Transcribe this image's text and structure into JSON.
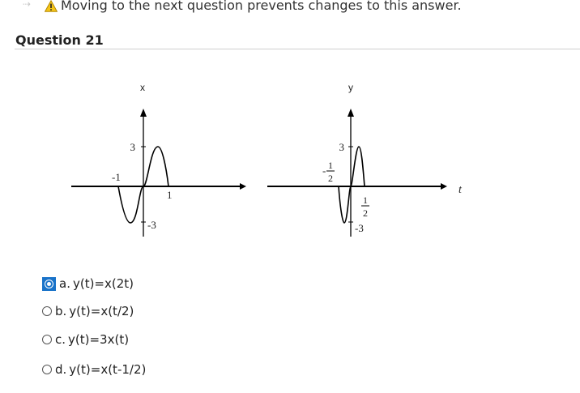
{
  "warning": {
    "nav_icon": "next-arrow-icon",
    "icon": "warning-icon",
    "text": "Moving to the next question prevents changes to this answer."
  },
  "question": {
    "title": "Question 21",
    "figure": {
      "left_plot": {
        "axis_label": "x",
        "tick_labels": {
          "y_pos": "3",
          "y_neg": "-3",
          "x_neg": "-1",
          "x_pos": "1"
        }
      },
      "right_plot": {
        "axis_label": "y",
        "horizontal_axis_label": "t",
        "tick_labels": {
          "y_pos": "3",
          "y_neg": "-3",
          "x_neg_num": "1",
          "x_neg_den": "2",
          "x_neg_sign": "-",
          "x_pos_num": "1",
          "x_pos_den": "2"
        }
      }
    },
    "options": [
      {
        "letter": "a.",
        "text": "y(t)=x(2t)",
        "selected": true
      },
      {
        "letter": "b.",
        "text": "y(t)=x(t/2)",
        "selected": false
      },
      {
        "letter": "c.",
        "text": "y(t)=3x(t)",
        "selected": false
      },
      {
        "letter": "d.",
        "text": "y(t)=x(t-1/2)",
        "selected": false
      }
    ]
  }
}
